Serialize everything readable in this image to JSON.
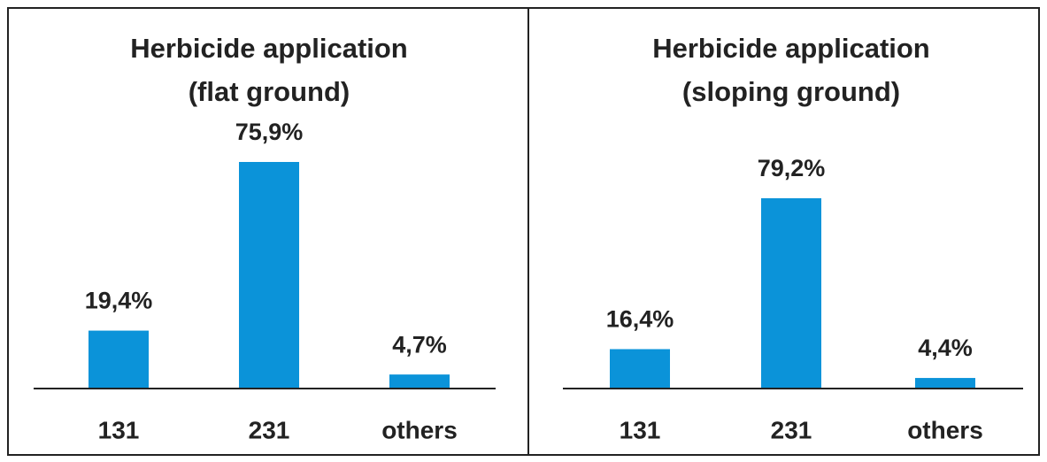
{
  "chart_data": [
    {
      "type": "bar",
      "title": "Herbicide application",
      "subtitle": "(flat ground)",
      "categories": [
        "131",
        "231",
        "others"
      ],
      "values": [
        19.4,
        75.9,
        4.7
      ],
      "value_labels": [
        "19,4%",
        "75,9%",
        "4,7%"
      ],
      "color": "#0b93d9"
    },
    {
      "type": "bar",
      "title": "Herbicide application",
      "subtitle": "(sloping ground)",
      "categories": [
        "131",
        "231",
        "others"
      ],
      "values": [
        16.4,
        79.2,
        4.4
      ],
      "value_labels": [
        "16,4%",
        "79,2%",
        "4,4%"
      ],
      "color": "#0b93d9"
    }
  ]
}
